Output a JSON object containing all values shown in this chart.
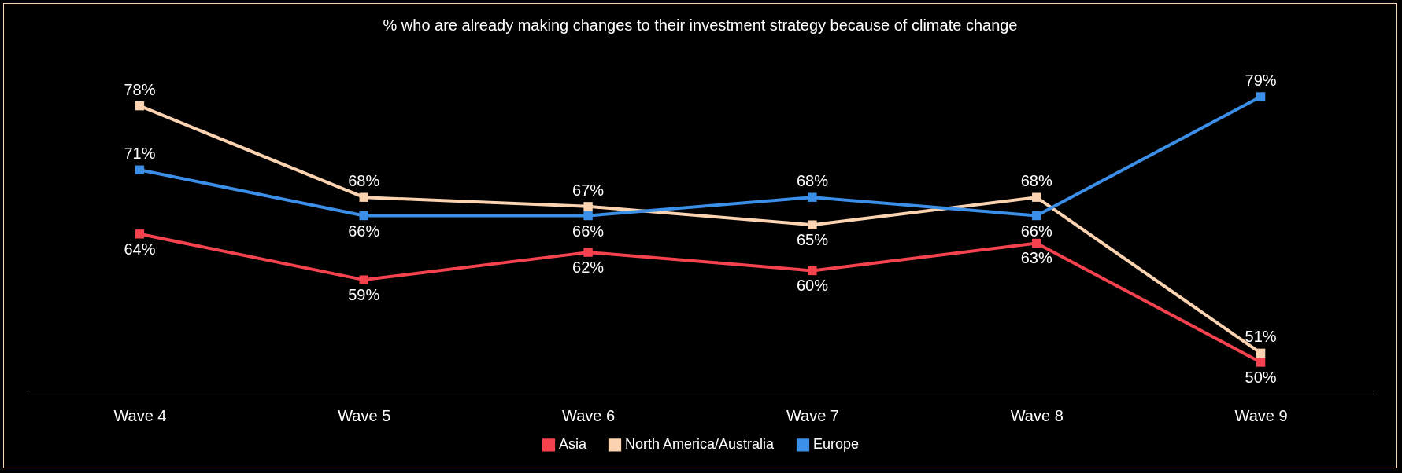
{
  "chart_data": {
    "type": "line",
    "title": "% who are already making changes to their investment strategy because of climate change",
    "categories": [
      "Wave 4",
      "Wave 5",
      "Wave 6",
      "Wave 7",
      "Wave 8",
      "Wave 9"
    ],
    "series": [
      {
        "name": "Asia",
        "color": "#f5424f",
        "values": [
          64,
          59,
          62,
          60,
          63,
          50
        ],
        "value_labels": [
          "64%",
          "59%",
          "62%",
          "60%",
          "63%",
          "50%"
        ]
      },
      {
        "name": "North America/Australia",
        "color": "#fcd3b0",
        "values": [
          78,
          68,
          67,
          65,
          68,
          51
        ],
        "value_labels": [
          "78%",
          "68%",
          "67%",
          "65%",
          "68%",
          "51%"
        ]
      },
      {
        "name": "Europe",
        "color": "#3b8fe8",
        "values": [
          71,
          66,
          66,
          68,
          66,
          79
        ],
        "value_labels": [
          "71%",
          "66%",
          "66%",
          "68%",
          "66%",
          "79%"
        ]
      }
    ],
    "grid": false,
    "legend": "bottom",
    "marker": "square",
    "line_style": "solid",
    "tick_labels": "x"
  }
}
